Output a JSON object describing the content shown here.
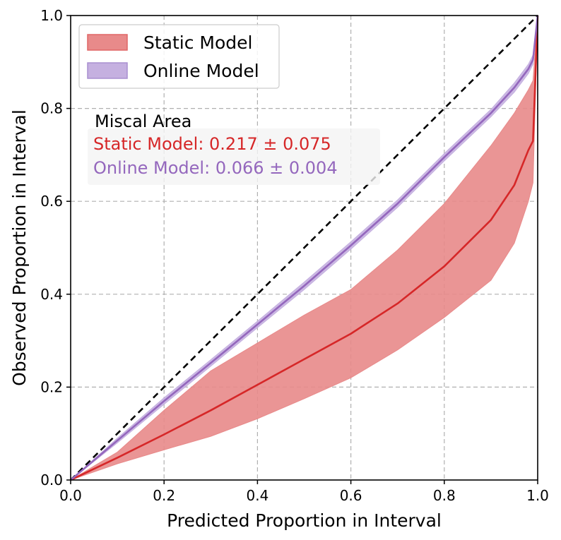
{
  "chart_data": {
    "type": "line",
    "xlabel": "Predicted Proportion in Interval",
    "ylabel": "Observed Proportion in Interval",
    "xlim": [
      0,
      1
    ],
    "ylim": [
      0,
      1
    ],
    "grid": true,
    "legend_position": "top-left",
    "x_ticks": [
      "0.0",
      "0.2",
      "0.4",
      "0.6",
      "0.8",
      "1.0"
    ],
    "y_ticks": [
      "0.0",
      "0.2",
      "0.4",
      "0.6",
      "0.8",
      "1.0"
    ],
    "ideal_line": {
      "x": [
        0,
        1
      ],
      "y": [
        0,
        1
      ],
      "color": "#000000",
      "style": "dashed"
    },
    "series": [
      {
        "name": "Static Model",
        "color": "#d62728",
        "band_color": "#e88a8a",
        "x": [
          0,
          0.1,
          0.2,
          0.3,
          0.4,
          0.5,
          0.6,
          0.7,
          0.8,
          0.9,
          0.95,
          0.98,
          0.99,
          1.0
        ],
        "mean": [
          0,
          0.048,
          0.098,
          0.15,
          0.205,
          0.26,
          0.315,
          0.38,
          0.46,
          0.56,
          0.635,
          0.71,
          0.73,
          1.0
        ],
        "lower": [
          0,
          0.035,
          0.065,
          0.094,
          0.132,
          0.175,
          0.22,
          0.28,
          0.35,
          0.43,
          0.51,
          0.6,
          0.64,
          1.0
        ],
        "upper": [
          0,
          0.06,
          0.15,
          0.235,
          0.295,
          0.355,
          0.41,
          0.495,
          0.595,
          0.72,
          0.79,
          0.84,
          0.86,
          1.0
        ]
      },
      {
        "name": "Online Model",
        "color": "#9467bd",
        "band_color": "#c5b0e0",
        "x": [
          0,
          0.1,
          0.2,
          0.3,
          0.4,
          0.5,
          0.6,
          0.7,
          0.8,
          0.9,
          0.95,
          0.98,
          0.99,
          1.0
        ],
        "mean": [
          0,
          0.085,
          0.17,
          0.252,
          0.335,
          0.418,
          0.505,
          0.595,
          0.695,
          0.79,
          0.845,
          0.885,
          0.905,
          1.0
        ],
        "lower": [
          0,
          0.08,
          0.163,
          0.245,
          0.328,
          0.41,
          0.497,
          0.587,
          0.687,
          0.782,
          0.835,
          0.875,
          0.895,
          1.0
        ],
        "upper": [
          0,
          0.09,
          0.177,
          0.259,
          0.342,
          0.426,
          0.513,
          0.603,
          0.703,
          0.798,
          0.855,
          0.895,
          0.915,
          1.0
        ]
      }
    ],
    "legend": [
      {
        "label": "Static Model",
        "color": "#e88a8a",
        "edge": "#e06666"
      },
      {
        "label": "Online Model",
        "color": "#c5b0e0",
        "edge": "#a98fd0"
      }
    ],
    "annotation": {
      "title": "Miscal Area",
      "lines": [
        {
          "text": "Static Model: 0.217 ± 0.075",
          "color": "#d62728"
        },
        {
          "text": "Online Model: 0.066 ± 0.004",
          "color": "#9467bd"
        }
      ]
    }
  }
}
